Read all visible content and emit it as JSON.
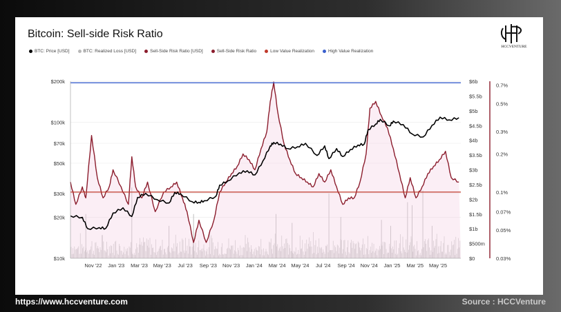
{
  "header": {
    "title": "Bitcoin: Sell-side Risk Ratio"
  },
  "logo": {
    "icon": "hcc-monogram-icon",
    "text": "HCCVENTURE"
  },
  "footer": {
    "url": "https://www.hccventure.com",
    "source": "Source : HCCVenture"
  },
  "colors": {
    "price": "#000000",
    "loss": "#b8b8b8",
    "ratio": "#8b1c2c",
    "low": "#c0392b",
    "high": "#3a5fcd",
    "ratio_fill": "#f3cde3"
  },
  "chart_data": {
    "type": "line",
    "legend": [
      {
        "name": "BTC: Price [USD]",
        "color": "#000000"
      },
      {
        "name": "BTC: Realized Loss [USD]",
        "color": "#b8b8b8"
      },
      {
        "name": "Sell-Side Risk Ratio [USD]",
        "color": "#8b1c2c"
      },
      {
        "name": "Sell-Side Risk Ratio",
        "color": "#8b1c2c"
      },
      {
        "name": "Low Value Realization",
        "color": "#c0392b"
      },
      {
        "name": "High Value Realization",
        "color": "#3a5fcd"
      }
    ],
    "x_ticks": [
      "Nov '22",
      "Jan '23",
      "Mar '23",
      "May '23",
      "Jul '23",
      "Sep '23",
      "Nov '23",
      "Jan '24",
      "Mar '24",
      "May '24",
      "Jul '24",
      "Sep '24",
      "Nov '24",
      "Jan '25",
      "Mar '25",
      "May '25"
    ],
    "x_range": [
      "2022-10-01",
      "2025-07-15"
    ],
    "y_left": {
      "scale": "log",
      "range": [
        10000,
        200000
      ],
      "ticks": [
        10000,
        20000,
        30000,
        50000,
        70000,
        100000,
        200000
      ],
      "tick_labels": [
        "$10k",
        "$20k",
        "$30k",
        "$50k",
        "$70k",
        "$100k",
        "$200k"
      ]
    },
    "y_mid": {
      "scale": "linear",
      "range": [
        0,
        6000000000
      ],
      "ticks": [
        0,
        500000000,
        1000000000,
        1500000000,
        2000000000,
        2500000000,
        3000000000,
        3500000000,
        4000000000,
        4500000000,
        5000000000,
        5500000000,
        6000000000
      ],
      "tick_labels": [
        "$0",
        "$500m",
        "$1b",
        "$1.5b",
        "$2b",
        "$2.5b",
        "$3b",
        "$3.5b",
        "$4b",
        "$4.5b",
        "$5b",
        "$5.5b",
        "$6b"
      ]
    },
    "y_right": {
      "scale": "log",
      "range": [
        0.0003,
        0.0075
      ],
      "ticks": [
        0.0003,
        0.0005,
        0.0007,
        0.001,
        0.002,
        0.003,
        0.005,
        0.007
      ],
      "tick_labels": [
        "0.03%",
        "0.05%",
        "0.07%",
        "0.1%",
        "0.2%",
        "0.3%",
        "0.5%",
        "0.7%"
      ]
    },
    "thresholds": {
      "low_value_realization": 0.001,
      "high_value_realization": 0.0073
    },
    "series": [
      {
        "name": "BTC: Price [USD]",
        "axis": "left",
        "x": [
          "2022-10-01",
          "2022-11-01",
          "2022-11-15",
          "2022-12-15",
          "2023-01-01",
          "2023-01-20",
          "2023-02-15",
          "2023-03-10",
          "2023-03-25",
          "2023-04-15",
          "2023-05-15",
          "2023-06-15",
          "2023-06-30",
          "2023-07-15",
          "2023-08-15",
          "2023-09-01",
          "2023-09-15",
          "2023-10-15",
          "2023-10-25",
          "2023-11-15",
          "2023-12-15",
          "2024-01-05",
          "2024-01-25",
          "2024-02-15",
          "2024-03-05",
          "2024-03-14",
          "2024-04-01",
          "2024-04-20",
          "2024-05-15",
          "2024-06-05",
          "2024-07-05",
          "2024-07-25",
          "2024-08-05",
          "2024-08-25",
          "2024-09-10",
          "2024-09-30",
          "2024-10-20",
          "2024-11-05",
          "2024-11-15",
          "2024-12-05",
          "2024-12-17",
          "2025-01-10",
          "2025-01-20",
          "2025-02-15",
          "2025-03-10",
          "2025-04-08",
          "2025-05-01",
          "2025-05-22",
          "2025-06-15",
          "2025-07-10"
        ],
        "values": [
          20500,
          20000,
          16500,
          16800,
          16600,
          21500,
          23500,
          20300,
          28000,
          30000,
          27000,
          25500,
          30500,
          29800,
          26000,
          25800,
          26500,
          28500,
          34500,
          37000,
          42500,
          44000,
          41000,
          52000,
          67000,
          71000,
          69000,
          64000,
          66000,
          70000,
          57000,
          67000,
          54000,
          64000,
          56000,
          63000,
          68000,
          69000,
          88000,
          97000,
          105000,
          94000,
          102000,
          96000,
          82000,
          78000,
          95000,
          109000,
          104000,
          108000
        ]
      },
      {
        "name": "Sell-Side Risk Ratio",
        "axis": "right",
        "x": [
          "2022-10-01",
          "2022-10-15",
          "2022-11-01",
          "2022-11-10",
          "2022-11-25",
          "2022-12-10",
          "2022-12-25",
          "2023-01-10",
          "2023-01-20",
          "2023-02-10",
          "2023-03-01",
          "2023-03-10",
          "2023-03-20",
          "2023-04-05",
          "2023-04-20",
          "2023-05-10",
          "2023-06-01",
          "2023-06-20",
          "2023-07-05",
          "2023-07-20",
          "2023-08-01",
          "2023-08-18",
          "2023-09-01",
          "2023-09-20",
          "2023-10-10",
          "2023-10-25",
          "2023-11-10",
          "2023-11-25",
          "2023-12-10",
          "2023-12-25",
          "2024-01-10",
          "2024-01-25",
          "2024-02-10",
          "2024-02-25",
          "2024-03-05",
          "2024-03-14",
          "2024-03-25",
          "2024-04-10",
          "2024-04-25",
          "2024-05-10",
          "2024-05-25",
          "2024-06-10",
          "2024-06-25",
          "2024-07-10",
          "2024-07-25",
          "2024-08-10",
          "2024-08-25",
          "2024-09-10",
          "2024-09-25",
          "2024-10-10",
          "2024-10-25",
          "2024-11-10",
          "2024-11-20",
          "2024-12-05",
          "2024-12-20",
          "2025-01-05",
          "2025-01-20",
          "2025-02-05",
          "2025-02-20",
          "2025-03-05",
          "2025-03-20",
          "2025-04-05",
          "2025-04-20",
          "2025-05-05",
          "2025-05-20",
          "2025-06-05",
          "2025-06-20",
          "2025-07-10"
        ],
        "values": [
          0.0012,
          0.0008,
          0.0011,
          0.0009,
          0.0028,
          0.0013,
          0.0009,
          0.0011,
          0.0015,
          0.0011,
          0.0008,
          0.0019,
          0.0011,
          0.0009,
          0.0012,
          0.0007,
          0.001,
          0.0011,
          0.0012,
          0.0009,
          0.0007,
          0.0004,
          0.0006,
          0.0004,
          0.0006,
          0.001,
          0.0012,
          0.0014,
          0.0016,
          0.002,
          0.0018,
          0.0015,
          0.0022,
          0.003,
          0.0052,
          0.0074,
          0.0042,
          0.0024,
          0.0018,
          0.0014,
          0.0013,
          0.0012,
          0.0011,
          0.0014,
          0.0012,
          0.0015,
          0.0011,
          0.0008,
          0.0009,
          0.0009,
          0.0012,
          0.002,
          0.0046,
          0.0052,
          0.004,
          0.0032,
          0.0022,
          0.0014,
          0.0009,
          0.0013,
          0.0009,
          0.0011,
          0.0014,
          0.0016,
          0.0018,
          0.0021,
          0.0013,
          0.0012
        ]
      },
      {
        "name": "BTC: Realized Loss [USD]",
        "axis": "mid",
        "x": [
          "2022-11-10",
          "2023-03-10",
          "2023-06-15",
          "2023-08-18",
          "2024-03-20",
          "2024-05-01",
          "2024-08-05",
          "2024-09-05",
          "2024-12-20",
          "2025-01-13",
          "2025-02-26",
          "2025-03-10",
          "2025-04-07",
          "2025-05-01"
        ],
        "values": [
          1500000000,
          2400000000,
          1100000000,
          1500000000,
          1500000000,
          1200000000,
          2200000000,
          1400000000,
          1300000000,
          1100000000,
          1900000000,
          1800000000,
          2300000000,
          1100000000
        ]
      }
    ]
  }
}
